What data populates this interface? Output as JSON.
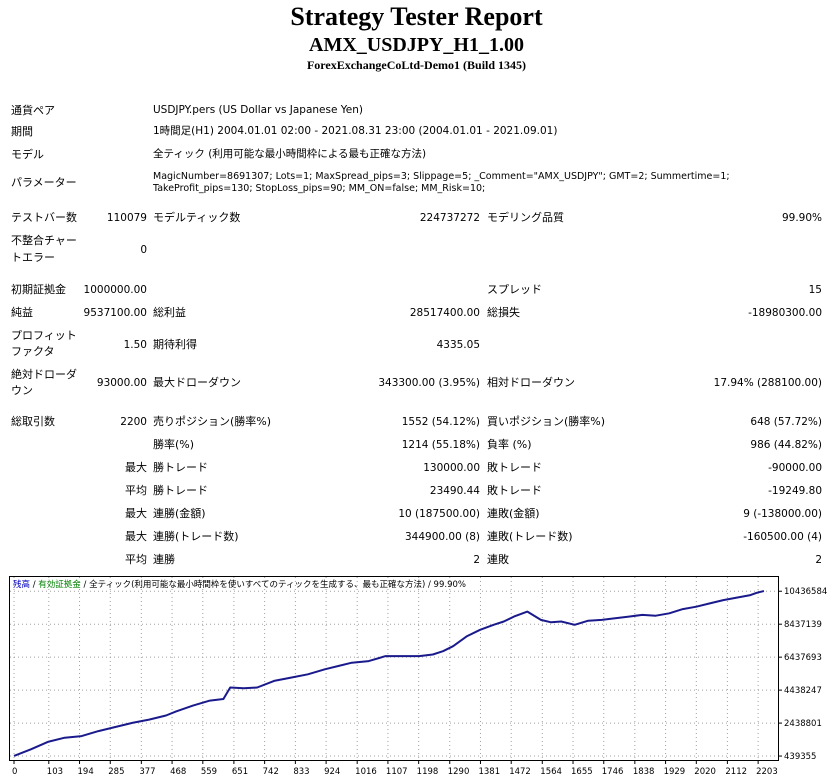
{
  "header": {
    "title": "Strategy Tester Report",
    "subtitle": "AMX_USDJPY_H1_1.00",
    "server": "ForexExchangeCoLtd-Demo1 (Build 1345)"
  },
  "info": {
    "symbol_label": "通貨ペア",
    "symbol_value": "USDJPY.pers (US Dollar vs Japanese Yen)",
    "period_label": "期間",
    "period_value": "1時間足(H1) 2004.01.01 02:00 - 2021.08.31 23:00 (2004.01.01 - 2021.09.01)",
    "model_label": "モデル",
    "model_value": "全ティック (利用可能な最小時間枠による最も正確な方法)",
    "params_label": "パラメーター",
    "params_line1": "MagicNumber=8691307; Lots=1; MaxSpread_pips=3; Slippage=5; _Comment=\"AMX_USDJPY\"; GMT=2; Summertime=1;",
    "params_line2": "TakeProfit_pips=130; StopLoss_pips=90; MM_ON=false; MM_Risk=10;"
  },
  "stats": {
    "bars_label": "テストバー数",
    "bars_value": "110079",
    "ticks_label": "モデルティック数",
    "ticks_value": "224737272",
    "quality_label": "モデリング品質",
    "quality_value": "99.90%",
    "mismatch_label1": "不整合チャー",
    "mismatch_label2": "トエラー",
    "mismatch_value": "0",
    "deposit_label": "初期証拠金",
    "deposit_value": "1000000.00",
    "spread_label": "スプレッド",
    "spread_value": "15",
    "net_label": "純益",
    "net_value": "9537100.00",
    "gross_profit_label": "総利益",
    "gross_profit_value": "28517400.00",
    "gross_loss_label": "総損失",
    "gross_loss_value": "-18980300.00",
    "pf_label1": "プロフィット",
    "pf_label2": "ファクタ",
    "pf_value": "1.50",
    "expected_label": "期待利得",
    "expected_value": "4335.05",
    "abs_dd_label1": "絶対ドローダ",
    "abs_dd_label2": "ウン",
    "abs_dd_value": "93000.00",
    "max_dd_label": "最大ドローダウン",
    "max_dd_value": "343300.00 (3.95%)",
    "rel_dd_label": "相対ドローダウン",
    "rel_dd_value": "17.94% (288100.00)",
    "total_trades_label": "総取引数",
    "total_trades_value": "2200",
    "short_label": "売りポジション(勝率%)",
    "short_value": "1552 (54.12%)",
    "long_label": "買いポジション(勝率%)",
    "long_value": "648 (57.72%)",
    "win_label": "勝率(%)",
    "win_value": "1214 (55.18%)",
    "loss_label": "負率 (%)",
    "loss_value": "986 (44.82%)",
    "max_label": "最大",
    "avg_label": "平均",
    "largest_win_label": "勝トレード",
    "largest_win_value": "130000.00",
    "largest_loss_label": "敗トレード",
    "largest_loss_value": "-90000.00",
    "avg_win_label": "勝トレード",
    "avg_win_value": "23490.44",
    "avg_loss_label": "敗トレード",
    "avg_loss_value": "-19249.80",
    "cons_win_money_label": "連勝(金額)",
    "cons_win_money_value": "10 (187500.00)",
    "cons_loss_money_label": "連敗(金額)",
    "cons_loss_money_value": "9 (-138000.00)",
    "cons_win_trades_label": "連勝(トレード数)",
    "cons_win_trades_value": "344900.00 (8)",
    "cons_loss_trades_label": "連敗(トレード数)",
    "cons_loss_trades_value": "-160500.00 (4)",
    "avg_cons_win_label": "連勝",
    "avg_cons_win_value": "2",
    "avg_cons_loss_label": "連敗",
    "avg_cons_loss_value": "2"
  },
  "chart_data": {
    "type": "line",
    "legend": {
      "balance": "残高",
      "separator": " / ",
      "lots": "有効証拠金",
      "model": "全ティック(利用可能な最小時間枠を使いすべてのティックを生成する、最も正確な方法)",
      "quality": " / 99.90%"
    },
    "legend_colors": {
      "balance": "#0000c0",
      "lots": "#008000",
      "text": "#000000"
    },
    "series_color": "#1a1a8c",
    "x_ticks": [
      0,
      103,
      194,
      285,
      377,
      468,
      559,
      651,
      742,
      833,
      924,
      1016,
      1107,
      1198,
      1290,
      1381,
      1472,
      1564,
      1655,
      1746,
      1838,
      1929,
      2020,
      2112,
      2203
    ],
    "xlim": [
      0,
      2250
    ],
    "y_ticks": [
      439355,
      2438801,
      4438247,
      6437693,
      8437139,
      10436584
    ],
    "ylim": [
      200000,
      11300000
    ],
    "x": [
      0,
      50,
      100,
      150,
      200,
      250,
      300,
      350,
      400,
      450,
      480,
      530,
      580,
      620,
      640,
      680,
      720,
      770,
      820,
      870,
      920,
      960,
      1000,
      1050,
      1100,
      1150,
      1200,
      1240,
      1270,
      1300,
      1340,
      1380,
      1420,
      1450,
      1480,
      1520,
      1560,
      1590,
      1620,
      1660,
      1700,
      1740,
      1780,
      1820,
      1860,
      1900,
      1940,
      1980,
      2020,
      2060,
      2100,
      2140,
      2180,
      2200,
      2220
    ],
    "values": [
      450000,
      850000,
      1300000,
      1550000,
      1650000,
      1950000,
      2200000,
      2450000,
      2650000,
      2900000,
      3150000,
      3500000,
      3800000,
      3900000,
      4600000,
      4550000,
      4600000,
      5000000,
      5200000,
      5400000,
      5700000,
      5900000,
      6100000,
      6200000,
      6500000,
      6500000,
      6500000,
      6600000,
      6800000,
      7100000,
      7700000,
      8100000,
      8400000,
      8600000,
      8900000,
      9200000,
      8700000,
      8550000,
      8600000,
      8400000,
      8650000,
      8700000,
      8800000,
      8900000,
      9000000,
      8950000,
      9100000,
      9350000,
      9500000,
      9700000,
      9900000,
      10050000,
      10200000,
      10350000,
      10450000
    ]
  }
}
